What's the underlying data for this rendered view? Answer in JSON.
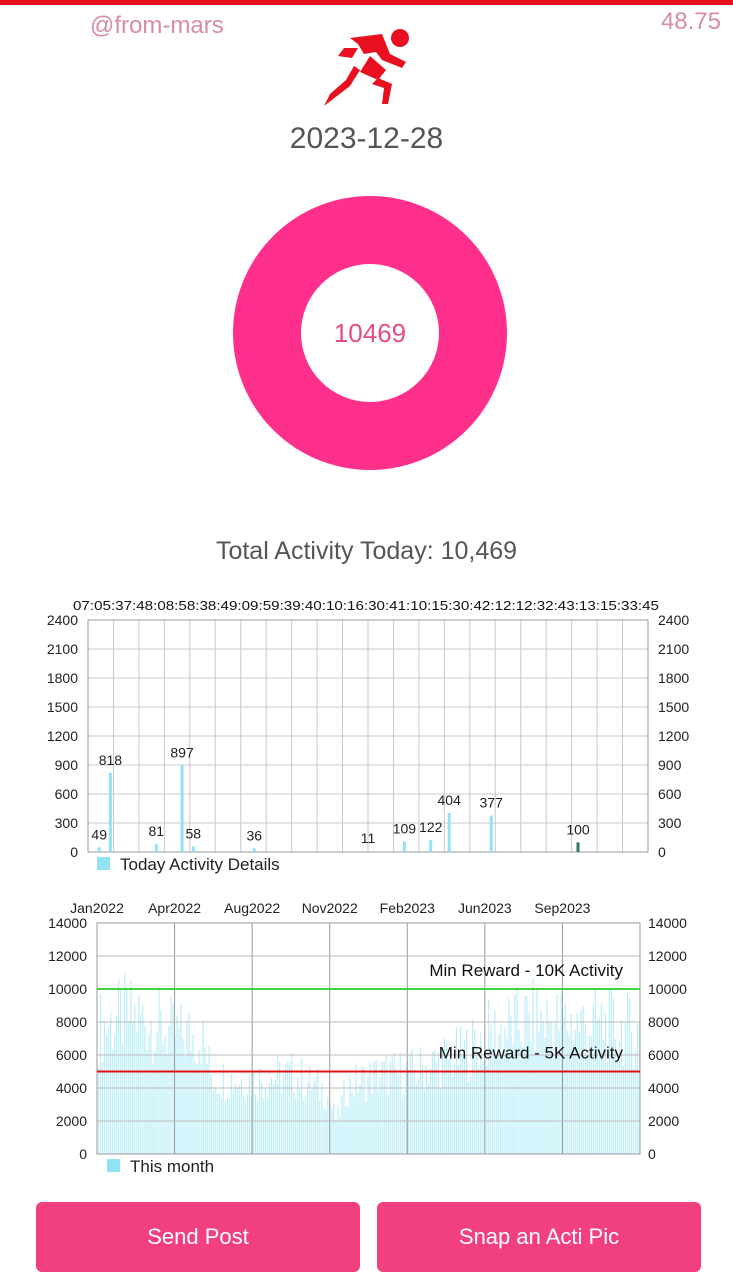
{
  "header": {
    "handle": "@from-mars",
    "balance": "48.75",
    "date": "2023-12-28"
  },
  "donut": {
    "value": "10469",
    "color": "#ff2f8c"
  },
  "total_label": "Total Activity Today: 10,469",
  "buttons": {
    "send_post": "Send Post",
    "snap_pic": "Snap an Acti Pic"
  },
  "colors": {
    "accent": "#f13f80",
    "bar": "#8fe3f5",
    "green": "#3ed43e",
    "red": "#e10f0f"
  },
  "chart_data": [
    {
      "type": "bar",
      "title": "",
      "xlabel": "",
      "ylabel": "",
      "ylim": [
        0,
        2400
      ],
      "yticks": [
        0,
        300,
        600,
        900,
        1200,
        1500,
        1800,
        2100,
        2400
      ],
      "top_axis_text": "07:05:37:48:08:58:38:49:09:59:39:40:10:16:30:41:10:15:30:42:12:12:32:43:13:15:33:45",
      "legend": "Today Activity Details",
      "bars": [
        {
          "value": 49,
          "label": "49",
          "pos": 0.02
        },
        {
          "value": 818,
          "label": "818",
          "pos": 0.04
        },
        {
          "value": 81,
          "label": "81",
          "pos": 0.122
        },
        {
          "value": 897,
          "label": "897",
          "pos": 0.168
        },
        {
          "value": 58,
          "label": "58",
          "pos": 0.188
        },
        {
          "value": 36,
          "label": "36",
          "pos": 0.297
        },
        {
          "value": 11,
          "label": "11",
          "pos": 0.5
        },
        {
          "value": 109,
          "label": "109",
          "pos": 0.565
        },
        {
          "value": 122,
          "label": "122",
          "pos": 0.612
        },
        {
          "value": 404,
          "label": "404",
          "pos": 0.645
        },
        {
          "value": 377,
          "label": "377",
          "pos": 0.72
        },
        {
          "value": 100,
          "label": "100",
          "pos": 0.875
        }
      ]
    },
    {
      "type": "bar",
      "title": "",
      "xlabel": "",
      "ylabel": "",
      "ylim": [
        0,
        14000
      ],
      "yticks": [
        0,
        2000,
        4000,
        6000,
        8000,
        10000,
        12000,
        14000
      ],
      "x_ticks": [
        "Jan2022",
        "Apr2022",
        "Aug2022",
        "Nov2022",
        "Feb2023",
        "Jun2023",
        "Sep2023"
      ],
      "legend": "This month",
      "reference_lines": [
        {
          "value": 10000,
          "label": "Min Reward - 10K Activity",
          "color": "#3ed43e"
        },
        {
          "value": 5000,
          "label": "Min Reward - 5K Activity",
          "color": "#e10f0f"
        }
      ],
      "series_profile": [
        [
          0.0,
          9500
        ],
        [
          0.05,
          10500
        ],
        [
          0.09,
          10200
        ],
        [
          0.14,
          9000
        ],
        [
          0.19,
          9000
        ],
        [
          0.21,
          5800
        ],
        [
          0.28,
          5600
        ],
        [
          0.36,
          6000
        ],
        [
          0.42,
          4800
        ],
        [
          0.44,
          2500
        ],
        [
          0.46,
          5200
        ],
        [
          0.52,
          6000
        ],
        [
          0.58,
          6200
        ],
        [
          0.63,
          7000
        ],
        [
          0.67,
          7500
        ],
        [
          0.72,
          9000
        ],
        [
          0.8,
          10200
        ],
        [
          0.86,
          10000
        ],
        [
          0.93,
          9800
        ],
        [
          1.0,
          9200
        ]
      ]
    }
  ]
}
